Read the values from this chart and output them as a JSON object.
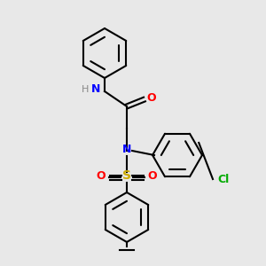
{
  "background_color": "#e8e8e8",
  "bond_color": "#000000",
  "bond_width": 1.5,
  "atom_colors": {
    "N": "#0000ff",
    "O": "#ff0000",
    "S": "#ccaa00",
    "Cl": "#00aa00",
    "H_label": "#888888",
    "C": "#000000"
  },
  "font_size": 9,
  "font_size_small": 8
}
